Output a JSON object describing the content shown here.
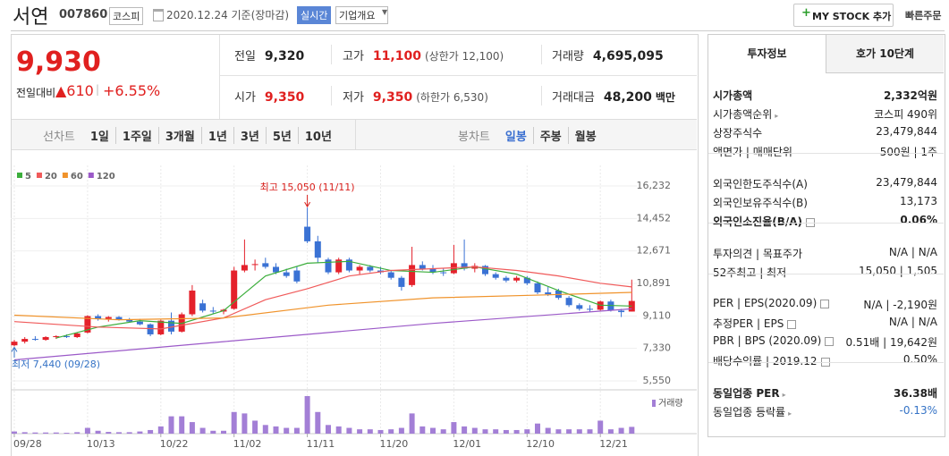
{
  "header": {
    "name": "서연",
    "code": "007860",
    "market": "코스피",
    "date": "2020.12.24 기준(장마감)",
    "realtime": "실시간",
    "company_info": "기업개요",
    "my_stock": "MY STOCK 추가",
    "quick_order": "빠른주문"
  },
  "price": {
    "current": "9,930",
    "change_label": "전일대비",
    "change": "▲610",
    "change_rate": "+6.55%",
    "color": "#e0201f"
  },
  "quote": [
    [
      {
        "label": "전일",
        "value": "9,320",
        "color": "#222"
      },
      {
        "label": "고가",
        "value": "11,100",
        "note": "(상한가 12,100)",
        "color": "#e0201f"
      },
      {
        "label": "거래량",
        "value": "4,695,095",
        "color": "#222"
      }
    ],
    [
      {
        "label": "시가",
        "value": "9,350",
        "color": "#e0201f"
      },
      {
        "label": "저가",
        "value": "9,350",
        "note": "(하한가 6,530)",
        "color": "#e0201f"
      },
      {
        "label": "거래대금",
        "value": "48,200",
        "unit": "백만",
        "color": "#222"
      }
    ]
  ],
  "periods": {
    "line_label": "선차트",
    "line": [
      "1일",
      "1주일",
      "3개월",
      "1년",
      "3년",
      "5년",
      "10년"
    ],
    "candle_label": "봉차트",
    "candle": [
      "일봉",
      "주봉",
      "월봉"
    ],
    "candle_active": 0
  },
  "chart_data": {
    "type": "candlestick",
    "categories": [
      "09/28",
      null,
      null,
      null,
      null,
      null,
      null,
      "10/13",
      null,
      null,
      null,
      null,
      null,
      null,
      "10/22",
      null,
      null,
      null,
      null,
      null,
      null,
      "11/02",
      null,
      null,
      null,
      null,
      null,
      null,
      "11/11",
      null,
      null,
      null,
      null,
      null,
      null,
      "11/20",
      null,
      null,
      null,
      null,
      null,
      null,
      "12/01",
      null,
      null,
      null,
      null,
      null,
      null,
      "12/10",
      null,
      null,
      null,
      null,
      null,
      null,
      "12/21",
      null,
      null,
      null
    ],
    "open": [
      7500,
      7700,
      7850,
      7800,
      7950,
      8000,
      7950,
      8200,
      9100,
      8950,
      9050,
      8900,
      8800,
      8650,
      8100,
      8850,
      8250,
      9200,
      9800,
      9400,
      9350,
      9500,
      11600,
      11900,
      12000,
      11800,
      11500,
      11600,
      14000,
      13200,
      12200,
      11500,
      12200,
      11600,
      11800,
      11600,
      11500,
      11200,
      10800,
      11900,
      11700,
      11500,
      11450,
      12000,
      11700,
      11850,
      11400,
      11200,
      11050,
      11200,
      10900,
      10400,
      10500,
      10100,
      9700,
      9500,
      9450,
      9900,
      9400,
      9350
    ],
    "high": [
      7800,
      7950,
      8000,
      8000,
      8050,
      8100,
      8200,
      9150,
      9200,
      9100,
      9100,
      9000,
      8950,
      8700,
      8900,
      9300,
      9300,
      10800,
      10000,
      9600,
      9500,
      11800,
      13300,
      12200,
      12300,
      12000,
      11700,
      11800,
      15050,
      13500,
      12300,
      12300,
      12300,
      11900,
      11900,
      11800,
      11600,
      11300,
      12900,
      12100,
      11900,
      11700,
      13000,
      13300,
      12000,
      11900,
      11500,
      11300,
      11300,
      11300,
      11000,
      10700,
      10600,
      10200,
      9800,
      9700,
      9950,
      10000,
      9500,
      11100
    ],
    "low": [
      7440,
      7600,
      7750,
      7750,
      7850,
      7900,
      7900,
      8150,
      8850,
      8800,
      8850,
      8750,
      8600,
      8000,
      8050,
      8100,
      8200,
      9100,
      9300,
      9200,
      9200,
      9450,
      11500,
      11600,
      11700,
      11400,
      11200,
      10900,
      13100,
      12000,
      11400,
      11400,
      11500,
      11400,
      11500,
      11400,
      11100,
      10500,
      10700,
      11600,
      11400,
      11300,
      11400,
      11600,
      11500,
      11300,
      11100,
      10950,
      10950,
      10800,
      10300,
      10200,
      10000,
      9600,
      9400,
      9350,
      9400,
      9350,
      9050,
      9350
    ],
    "close": [
      7700,
      7850,
      7800,
      7950,
      8000,
      7950,
      8150,
      9100,
      8950,
      9050,
      8900,
      8800,
      8650,
      8100,
      8850,
      8250,
      9200,
      10500,
      9400,
      9350,
      9450,
      11600,
      11900,
      11950,
      11800,
      11500,
      11300,
      11000,
      13200,
      12300,
      11500,
      12200,
      11600,
      11800,
      11600,
      11500,
      11200,
      10700,
      11900,
      11700,
      11500,
      11450,
      12000,
      11700,
      11850,
      11400,
      11200,
      11050,
      11200,
      10900,
      10400,
      10300,
      10100,
      9700,
      9500,
      9450,
      9900,
      9400,
      9320,
      9930
    ],
    "up_color": "#e4212b",
    "down_color": "#3a72d4",
    "ylim": [
      5550,
      16232
    ],
    "yticks": [
      {
        "value": 5550,
        "label": "5,550"
      },
      {
        "value": 7330,
        "label": "7,330"
      },
      {
        "value": 9110,
        "label": "9,110"
      },
      {
        "value": 10891,
        "label": "10,891"
      },
      {
        "value": 12671,
        "label": "12,671"
      },
      {
        "value": 14452,
        "label": "14,452"
      },
      {
        "value": 16232,
        "label": "16,232"
      }
    ],
    "grid": true,
    "max_label": "최고 15,050 (11/11)",
    "max_color": "#d8201c",
    "min_label": "최저 7,440 (09/28)",
    "min_color": "#3573c6",
    "moving_averages": [
      {
        "name": "5",
        "color": "#3cae3c",
        "x": [
          4,
          8,
          12,
          16,
          20,
          24,
          28,
          32,
          36,
          40,
          44,
          48,
          52,
          56,
          59
        ],
        "values": [
          7900,
          8500,
          8850,
          8700,
          9400,
          11300,
          12000,
          12100,
          11600,
          11500,
          11800,
          11400,
          10500,
          9700,
          9650
        ]
      },
      {
        "name": "20",
        "color": "#f05a5a",
        "x": [
          0,
          8,
          14,
          20,
          24,
          28,
          32,
          36,
          40,
          44,
          48,
          52,
          56,
          59
        ],
        "values": [
          8800,
          8500,
          8400,
          9000,
          10000,
          10600,
          11300,
          11600,
          11700,
          11800,
          11600,
          11300,
          10900,
          10700
        ]
      },
      {
        "name": "60",
        "color": "#f0932b",
        "x": [
          0,
          10,
          20,
          30,
          40,
          50,
          59
        ],
        "values": [
          9150,
          8900,
          9000,
          9700,
          10100,
          10250,
          10400
        ]
      },
      {
        "name": "120",
        "color": "#9b59c8",
        "x": [
          0,
          20,
          40,
          59
        ],
        "values": [
          6700,
          7700,
          8700,
          9500
        ]
      }
    ],
    "volume": {
      "label": "거래량",
      "color": "#a37fd6",
      "values": [
        1500000,
        1000000,
        800000,
        800000,
        800000,
        600000,
        1000000,
        4000000,
        2000000,
        1200000,
        1000000,
        1000000,
        1500000,
        2500000,
        5000000,
        12000000,
        12000000,
        8000000,
        4000000,
        2000000,
        2000000,
        15000000,
        14000000,
        9000000,
        6000000,
        5000000,
        4000000,
        4000000,
        26000000,
        15000000,
        6000000,
        5000000,
        4000000,
        3000000,
        3000000,
        2500000,
        3000000,
        4000000,
        14000000,
        5000000,
        4000000,
        3000000,
        8000000,
        5000000,
        4000000,
        3000000,
        3000000,
        2500000,
        2500000,
        3000000,
        7000000,
        4000000,
        3000000,
        3000000,
        3000000,
        3000000,
        9000000,
        3000000,
        4000000,
        4695095
      ]
    }
  },
  "info": {
    "tabs": [
      "투자정보",
      "호가 10단계"
    ],
    "active_tab": 0,
    "sections": [
      [
        {
          "label": "시가총액",
          "value": "2,332억원",
          "bold": true
        },
        {
          "label": "시가총액순위",
          "arrow": true,
          "value": "코스피 490위"
        },
        {
          "label": "상장주식수",
          "value": "23,479,844"
        },
        {
          "label": "액면가 | 매매단위",
          "value": "500원 | 1주"
        }
      ],
      [
        {
          "label": "외국인한도주식수(A)",
          "value": "23,479,844"
        },
        {
          "label": "외국인보유주식수(B)",
          "value": "13,173"
        },
        {
          "label": "외국인소진율(B/A)",
          "help": true,
          "value": "0.06%",
          "bold": true
        }
      ],
      [
        {
          "label": "투자의견 | 목표주가",
          "value": "N/A | N/A"
        },
        {
          "label": "52주최고 | 최저",
          "value": "15,050 | 1,505"
        }
      ],
      [
        {
          "label": "PER | EPS(2020.09)",
          "help": true,
          "value": "N/A | -2,190원"
        },
        {
          "label": "추정PER | EPS",
          "help": true,
          "value": "N/A | N/A"
        },
        {
          "label": "PBR | BPS (2020.09)",
          "help": true,
          "value": "0.51배 | 19,642원"
        },
        {
          "label": "배당수익률 | 2019.12",
          "help": true,
          "value": "0.50%"
        }
      ],
      [
        {
          "label": "동일업종 PER",
          "arrow": true,
          "value": "36.38배",
          "bold": true
        },
        {
          "label": "동일업종 등락률",
          "arrow": true,
          "value": "-0.13%",
          "color": "#3573c6"
        }
      ]
    ]
  }
}
